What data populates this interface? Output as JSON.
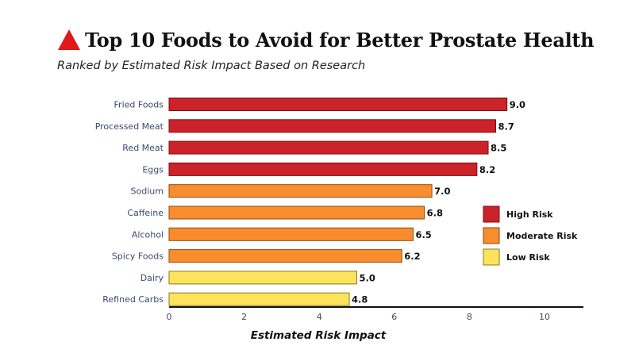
{
  "chart_data": {
    "type": "bar",
    "orientation": "horizontal",
    "title": "Top 10 Foods to Avoid for Better Prostate Health",
    "subtitle": "Ranked by Estimated Risk Impact Based on Research",
    "xlabel": "Estimated Risk Impact",
    "ylabel": "",
    "xlim": [
      0,
      11
    ],
    "xticks": [
      0,
      2,
      4,
      6,
      8,
      10
    ],
    "categories": [
      "Fried Foods",
      "Processed Meat",
      "Red Meat",
      "Eggs",
      "Sodium",
      "Caffeine",
      "Alcohol",
      "Spicy Foods",
      "Dairy",
      "Refined Carbs"
    ],
    "values": [
      9.0,
      8.7,
      8.5,
      8.2,
      7.0,
      6.8,
      6.5,
      6.2,
      5.0,
      4.8
    ],
    "value_labels": [
      "9.0",
      "8.7",
      "8.5",
      "8.2",
      "7.0",
      "6.8",
      "6.5",
      "6.2",
      "5.0",
      "4.8"
    ],
    "risk_levels": [
      "high",
      "high",
      "high",
      "high",
      "moderate",
      "moderate",
      "moderate",
      "moderate",
      "low",
      "low"
    ],
    "legend": [
      {
        "key": "high",
        "label": "High Risk",
        "color": "#cc2229"
      },
      {
        "key": "moderate",
        "label": "Moderate Risk",
        "color": "#f98d2e"
      },
      {
        "key": "low",
        "label": "Low Risk",
        "color": "#fbe45c"
      }
    ],
    "legend_position": "right",
    "title_icon_color": "#e01818"
  }
}
